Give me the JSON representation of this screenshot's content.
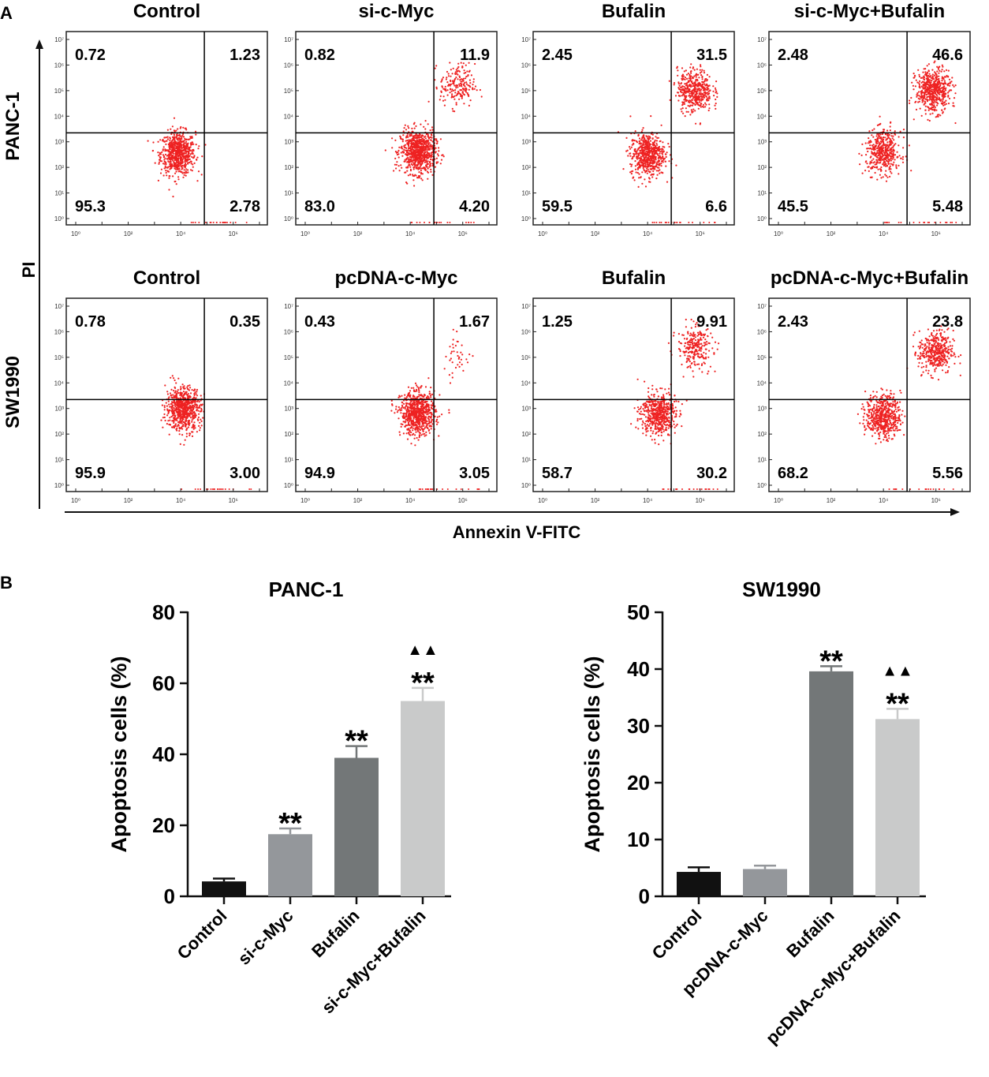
{
  "panel_a_label": "A",
  "panel_b_label": "B",
  "y_axis_label": "PI",
  "x_axis_label": "Annexin V-FITC",
  "tick_labels": [
    "10⁰",
    "10¹",
    "10²",
    "10³",
    "10⁴",
    "10⁵",
    "10⁶",
    "10⁷"
  ],
  "colors": {
    "dots": "#ee2222",
    "control": "#111111",
    "treat1": "#94979b",
    "bufalin": "#737778",
    "combo": "#c9caca"
  },
  "chart_data": [
    {
      "type": "scatter",
      "row_label": "PANC-1",
      "panels": [
        {
          "title": "Control",
          "q_ul": "0.72",
          "q_ur": "1.23",
          "q_ll": "95.3",
          "q_lr": "2.78",
          "clusters": [
            {
              "x": 3.9,
              "y": 2.55,
              "n": 700
            }
          ]
        },
        {
          "title": "si-c-Myc",
          "q_ul": "0.82",
          "q_ur": "11.9",
          "q_ll": "83.0",
          "q_lr": "4.20",
          "clusters": [
            {
              "x": 4.3,
              "y": 2.6,
              "n": 800
            },
            {
              "x": 5.8,
              "y": 5.2,
              "n": 200
            }
          ]
        },
        {
          "title": "Bufalin",
          "q_ul": "2.45",
          "q_ur": "31.5",
          "q_ll": "59.5",
          "q_lr": "6.6",
          "clusters": [
            {
              "x": 4.0,
              "y": 2.5,
              "n": 600
            },
            {
              "x": 5.8,
              "y": 5.0,
              "n": 450
            }
          ]
        },
        {
          "title": "si-c-Myc+Bufalin",
          "q_ul": "2.48",
          "q_ur": "46.6",
          "q_ll": "45.5",
          "q_lr": "5.48",
          "clusters": [
            {
              "x": 4.0,
              "y": 2.6,
              "n": 450
            },
            {
              "x": 5.9,
              "y": 5.0,
              "n": 550
            }
          ]
        }
      ]
    },
    {
      "type": "scatter",
      "row_label": "SW1990",
      "panels": [
        {
          "title": "Control",
          "q_ul": "0.78",
          "q_ur": "0.35",
          "q_ll": "95.9",
          "q_lr": "3.00",
          "clusters": [
            {
              "x": 4.1,
              "y": 3.0,
              "n": 700
            }
          ]
        },
        {
          "title": "pcDNA-c-Myc",
          "q_ul": "0.43",
          "q_ur": "1.67",
          "q_ll": "94.9",
          "q_lr": "3.05",
          "clusters": [
            {
              "x": 4.3,
              "y": 2.8,
              "n": 750
            },
            {
              "x": 5.8,
              "y": 5.0,
              "n": 40
            }
          ]
        },
        {
          "title": "Bufalin",
          "q_ul": "1.25",
          "q_ur": "9.91",
          "q_ll": "58.7",
          "q_lr": "30.2",
          "clusters": [
            {
              "x": 4.4,
              "y": 2.8,
              "n": 550
            },
            {
              "x": 5.8,
              "y": 5.4,
              "n": 250
            }
          ]
        },
        {
          "title": "pcDNA-c-Myc+Bufalin",
          "q_ul": "2.43",
          "q_ur": "23.8",
          "q_ll": "68.2",
          "q_lr": "5.56",
          "clusters": [
            {
              "x": 4.0,
              "y": 2.7,
              "n": 550
            },
            {
              "x": 6.0,
              "y": 5.2,
              "n": 400
            }
          ]
        }
      ]
    },
    {
      "type": "bar",
      "title": "PANC-1",
      "ylabel": "Apoptosis cells (%)",
      "ylim": [
        0,
        80
      ],
      "yticks": [
        0,
        20,
        40,
        60,
        80
      ],
      "categories": [
        "Control",
        "si-c-Myc",
        "Bufalin",
        "si-c-Myc+Bufalin"
      ],
      "values": [
        4.2,
        17.5,
        39.0,
        55.0
      ],
      "errors": [
        0.8,
        1.6,
        3.3,
        3.7
      ],
      "sig": [
        "",
        "**",
        "**",
        "**"
      ],
      "sig2": [
        "",
        "",
        "",
        "▲▲"
      ]
    },
    {
      "type": "bar",
      "title": "SW1990",
      "ylabel": "Apoptosis cells (%)",
      "ylim": [
        0,
        50
      ],
      "yticks": [
        0,
        10,
        20,
        30,
        40,
        50
      ],
      "categories": [
        "Control",
        "pcDNA-c-Myc",
        "Bufalin",
        "pcDNA-c-Myc+Bufalin"
      ],
      "values": [
        4.3,
        4.8,
        39.6,
        31.2
      ],
      "errors": [
        0.8,
        0.6,
        0.9,
        1.8
      ],
      "sig": [
        "",
        "",
        "**",
        "**"
      ],
      "sig2": [
        "",
        "",
        "",
        "▲▲"
      ]
    }
  ]
}
